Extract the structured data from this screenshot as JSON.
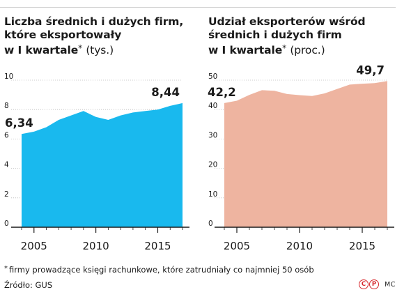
{
  "chart_data": [
    {
      "type": "area",
      "title_lines": [
        "Liczba średnich i dużych firm,",
        "które eksportowały",
        "w I kwartale"
      ],
      "title_star": "*",
      "title_unit": "(tys.)",
      "color": "#19b9ee",
      "x": [
        2004,
        2005,
        2006,
        2007,
        2008,
        2009,
        2010,
        2011,
        2012,
        2013,
        2014,
        2015,
        2016,
        2017
      ],
      "y": [
        6.34,
        6.5,
        6.8,
        7.3,
        7.6,
        7.9,
        7.5,
        7.3,
        7.6,
        7.8,
        7.9,
        8.0,
        8.25,
        8.44
      ],
      "xlim": [
        2003,
        2018
      ],
      "ylim": [
        0,
        10
      ],
      "yticks": [
        "0",
        "2",
        "4",
        "6",
        "8",
        "10"
      ],
      "xticks": [
        "2005",
        "2010",
        "2015"
      ],
      "annotations": [
        {
          "text": "6,34",
          "x": 2004,
          "y": 6.34
        },
        {
          "text": "8,44",
          "x": 2017,
          "y": 8.44
        }
      ]
    },
    {
      "type": "area",
      "title_lines": [
        "Udział eksporterów wśród",
        "średnich i dużych firm",
        "w I kwartale"
      ],
      "title_star": "*",
      "title_unit": "(proc.)",
      "color": "#eeb4a0",
      "x": [
        2004,
        2005,
        2006,
        2007,
        2008,
        2009,
        2010,
        2011,
        2012,
        2013,
        2014,
        2015,
        2016,
        2017
      ],
      "y": [
        42.2,
        43.0,
        45.0,
        46.6,
        46.4,
        45.3,
        44.9,
        44.6,
        45.5,
        47.0,
        48.5,
        48.8,
        49.0,
        49.7
      ],
      "xlim": [
        2003,
        2018
      ],
      "ylim": [
        0,
        50
      ],
      "yticks": [
        "0",
        "10",
        "20",
        "30",
        "40",
        "50"
      ],
      "xticks": [
        "2005",
        "2010",
        "2015"
      ],
      "annotations": [
        {
          "text": "42,2",
          "x": 2004,
          "y": 42.2
        },
        {
          "text": "49,7",
          "x": 2017,
          "y": 49.7
        }
      ]
    }
  ],
  "footnote": "firmy prowadzące księgi rachunkowe, które zatrudniały co najmniej 50 osób",
  "footnote_star": "*",
  "source": "Źródło: GUS",
  "credits": {
    "c_mark": "C",
    "p_mark": "P",
    "author": "MC"
  }
}
